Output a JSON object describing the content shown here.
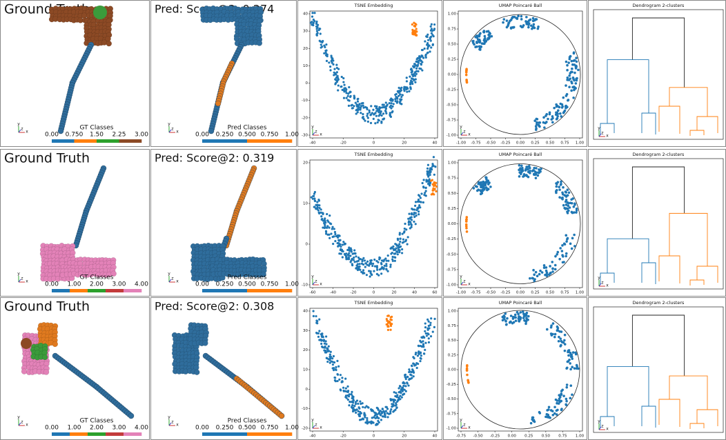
{
  "axis_triad": [
    "y",
    "z",
    "x"
  ],
  "rows": [
    {
      "gt_title": "Ground Truth",
      "pred_title": "Pred: Score@2: 0.274",
      "gt_colorbar": {
        "label": "GT Classes",
        "ticks": [
          "0.00",
          "0.750",
          "1.50",
          "2.25",
          "3.00"
        ]
      },
      "pred_colorbar": {
        "label": "Pred Classes",
        "ticks": [
          "0.00",
          "0.250",
          "0.500",
          "0.750",
          "1.00"
        ]
      },
      "tsne": {
        "title": "TSNE Embedding",
        "xticks": [
          "-40",
          "-20",
          "0",
          "20",
          "40"
        ],
        "yticks": [
          "40",
          "30",
          "20",
          "10",
          "0",
          "-10",
          "-20",
          "-30"
        ]
      },
      "umap": {
        "title": "UMAP Poincaré Ball",
        "xticks": [
          "-1.00",
          "-0.75",
          "-0.50",
          "-0.25",
          "0.00",
          "0.25",
          "0.50",
          "0.75",
          "1.00"
        ],
        "yticks": [
          "1.00",
          "0.75",
          "0.50",
          "0.25",
          "0.00",
          "-0.25",
          "-0.50",
          "-0.75",
          "-1.00"
        ]
      },
      "dendrogram": {
        "title": "Dendrogram 2-clusters"
      }
    },
    {
      "gt_title": "Ground Truth",
      "pred_title": "Pred: Score@2: 0.319",
      "gt_colorbar": {
        "label": "GT Classes",
        "ticks": [
          "0.00",
          "1.00",
          "2.00",
          "3.00",
          "4.00"
        ]
      },
      "pred_colorbar": {
        "label": "Pred Classes",
        "ticks": [
          "0.00",
          "0.250",
          "0.500",
          "0.750",
          "1.00"
        ]
      },
      "tsne": {
        "title": "TSNE Embedding",
        "xticks": [
          "-60",
          "-40",
          "-20",
          "0",
          "20",
          "40",
          "60"
        ],
        "yticks": [
          "20",
          "10",
          "0",
          "-10"
        ]
      },
      "umap": {
        "title": "UMAP Poincaré Ball",
        "xticks": [
          "-1.00",
          "-0.75",
          "-0.50",
          "-0.25",
          "0.00",
          "0.25",
          "0.50",
          "0.75",
          "1.00"
        ],
        "yticks": [
          "1.00",
          "0.75",
          "0.50",
          "0.25",
          "0.00",
          "-0.25",
          "-0.50",
          "-0.75",
          "-1.00"
        ]
      },
      "dendrogram": {
        "title": "Dendrogram 2-clusters"
      }
    },
    {
      "gt_title": "Ground Truth",
      "pred_title": "Pred: Score@2: 0.308",
      "gt_colorbar": {
        "label": "GT Classes",
        "ticks": [
          "0.00",
          "1.00",
          "2.00",
          "3.00",
          "4.00"
        ]
      },
      "pred_colorbar": {
        "label": "Pred Classes",
        "ticks": [
          "0.00",
          "0.250",
          "0.500",
          "0.750",
          "1.00"
        ]
      },
      "tsne": {
        "title": "TSNE Embedding",
        "xticks": [
          "-40",
          "-20",
          "0",
          "20",
          "40"
        ],
        "yticks": [
          "40",
          "30",
          "20",
          "10",
          "0",
          "-10",
          "-20"
        ]
      },
      "umap": {
        "title": "UMAP Poincaré Ball",
        "xticks": [
          "-0.75",
          "-0.50",
          "-0.25",
          "0.00",
          "0.25",
          "0.50",
          "0.75",
          "1.00"
        ],
        "yticks": [
          "1.00",
          "0.75",
          "0.50",
          "0.25",
          "0.00",
          "-0.25",
          "-0.50",
          "-0.75",
          "-1.00"
        ]
      },
      "dendrogram": {
        "title": "Dendrogram 2-clusters"
      }
    }
  ]
}
